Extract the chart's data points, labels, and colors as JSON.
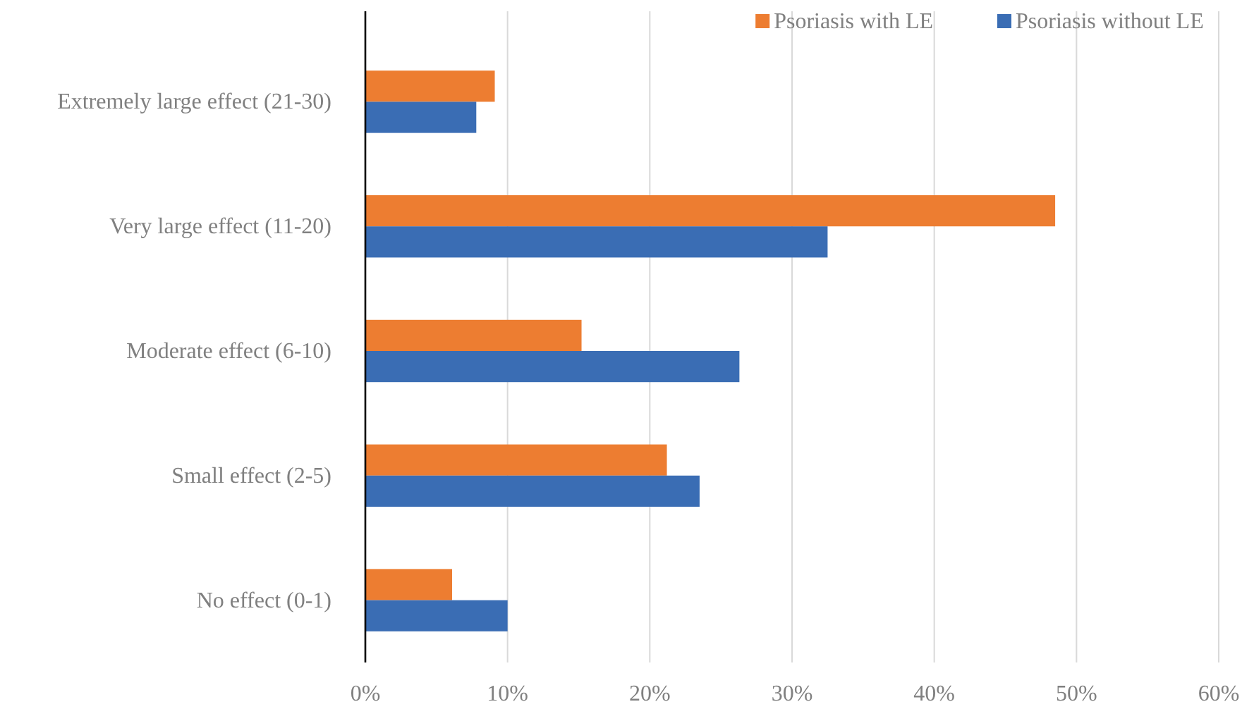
{
  "chart_data": {
    "type": "bar",
    "orientation": "horizontal",
    "categories": [
      "Extremely large effect (21-30)",
      "Very large effect (11-20)",
      "Moderate effect (6-10)",
      "Small effect (2-5)",
      "No effect (0-1)"
    ],
    "series": [
      {
        "name": "Psoriasis with LE",
        "color": "#ed7d31",
        "values": [
          9.1,
          48.5,
          15.2,
          21.2,
          6.1
        ]
      },
      {
        "name": "Psoriasis without LE",
        "color": "#3a6db4",
        "values": [
          7.8,
          32.5,
          26.3,
          23.5,
          10.0
        ]
      }
    ],
    "xlim": [
      0,
      60
    ],
    "xticks": [
      {
        "value": 0,
        "label": "0%"
      },
      {
        "value": 10,
        "label": "10%"
      },
      {
        "value": 20,
        "label": "20%"
      },
      {
        "value": 30,
        "label": "30%"
      },
      {
        "value": 40,
        "label": "40%"
      },
      {
        "value": 50,
        "label": "50%"
      },
      {
        "value": 60,
        "label": "60%"
      }
    ],
    "grid": "x",
    "legend": "top right"
  }
}
